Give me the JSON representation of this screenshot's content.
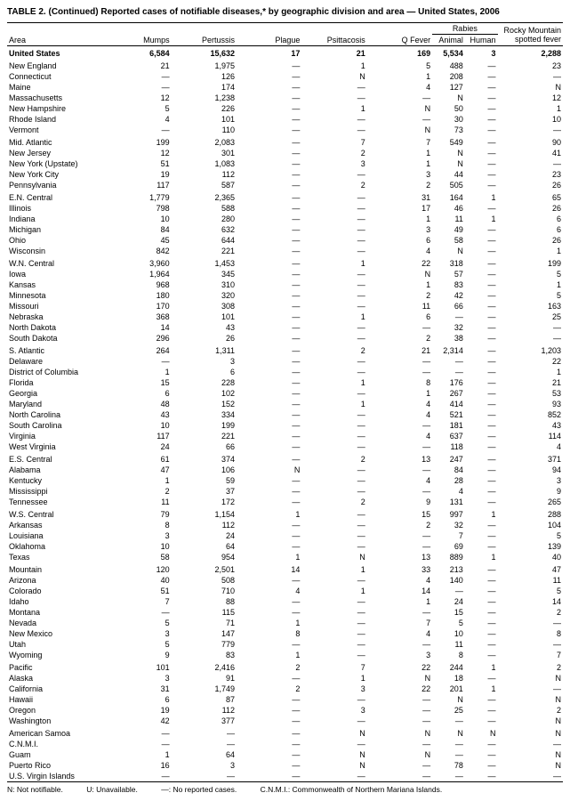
{
  "title": "TABLE 2. (Continued) Reported cases of notifiable diseases,* by geographic division and area — United States, 2006",
  "columns": {
    "area": "Area",
    "mumps": "Mumps",
    "pertussis": "Pertussis",
    "plague": "Plague",
    "psittacosis": "Psittacosis",
    "qfever": "Q Fever",
    "rabies_group": "Rabies",
    "rabies_animal": "Animal",
    "rabies_human": "Human",
    "rmsf": "Rocky Mountain spotted fever"
  },
  "footnote": {
    "n": "N: Not notifiable.",
    "u": "U: Unavailable.",
    "dash": "—: No reported cases.",
    "cnmi": "C.N.M.I.: Commonwealth of Northern Mariana Islands."
  },
  "sections": [
    {
      "bold": true,
      "rows": [
        [
          "United States",
          "6,584",
          "15,632",
          "17",
          "21",
          "169",
          "5,534",
          "3",
          "2,288"
        ]
      ]
    },
    {
      "rows": [
        [
          "New England",
          "21",
          "1,975",
          "—",
          "1",
          "5",
          "488",
          "—",
          "23"
        ],
        [
          "Connecticut",
          "—",
          "126",
          "—",
          "N",
          "1",
          "208",
          "—",
          "—"
        ],
        [
          "Maine",
          "—",
          "174",
          "—",
          "—",
          "4",
          "127",
          "—",
          "N"
        ],
        [
          "Massachusetts",
          "12",
          "1,238",
          "—",
          "—",
          "—",
          "N",
          "—",
          "12"
        ],
        [
          "New Hampshire",
          "5",
          "226",
          "—",
          "1",
          "N",
          "50",
          "—",
          "1"
        ],
        [
          "Rhode Island",
          "4",
          "101",
          "—",
          "—",
          "—",
          "30",
          "—",
          "10"
        ],
        [
          "Vermont",
          "—",
          "110",
          "—",
          "—",
          "N",
          "73",
          "—",
          "—"
        ]
      ]
    },
    {
      "rows": [
        [
          "Mid. Atlantic",
          "199",
          "2,083",
          "—",
          "7",
          "7",
          "549",
          "—",
          "90"
        ],
        [
          "New Jersey",
          "12",
          "301",
          "—",
          "2",
          "1",
          "N",
          "—",
          "41"
        ],
        [
          "New York (Upstate)",
          "51",
          "1,083",
          "—",
          "3",
          "1",
          "N",
          "—",
          "—"
        ],
        [
          "New York City",
          "19",
          "112",
          "—",
          "—",
          "3",
          "44",
          "—",
          "23"
        ],
        [
          "Pennsylvania",
          "117",
          "587",
          "—",
          "2",
          "2",
          "505",
          "—",
          "26"
        ]
      ]
    },
    {
      "rows": [
        [
          "E.N. Central",
          "1,779",
          "2,365",
          "—",
          "—",
          "31",
          "164",
          "1",
          "65"
        ],
        [
          "Illinois",
          "798",
          "588",
          "—",
          "—",
          "17",
          "46",
          "—",
          "26"
        ],
        [
          "Indiana",
          "10",
          "280",
          "—",
          "—",
          "1",
          "11",
          "1",
          "6"
        ],
        [
          "Michigan",
          "84",
          "632",
          "—",
          "—",
          "3",
          "49",
          "—",
          "6"
        ],
        [
          "Ohio",
          "45",
          "644",
          "—",
          "—",
          "6",
          "58",
          "—",
          "26"
        ],
        [
          "Wisconsin",
          "842",
          "221",
          "—",
          "—",
          "4",
          "N",
          "—",
          "1"
        ]
      ]
    },
    {
      "rows": [
        [
          "W.N. Central",
          "3,960",
          "1,453",
          "—",
          "1",
          "22",
          "318",
          "—",
          "199"
        ],
        [
          "Iowa",
          "1,964",
          "345",
          "—",
          "—",
          "N",
          "57",
          "—",
          "5"
        ],
        [
          "Kansas",
          "968",
          "310",
          "—",
          "—",
          "1",
          "83",
          "—",
          "1"
        ],
        [
          "Minnesota",
          "180",
          "320",
          "—",
          "—",
          "2",
          "42",
          "—",
          "5"
        ],
        [
          "Missouri",
          "170",
          "308",
          "—",
          "—",
          "11",
          "66",
          "—",
          "163"
        ],
        [
          "Nebraska",
          "368",
          "101",
          "—",
          "1",
          "6",
          "—",
          "—",
          "25"
        ],
        [
          "North Dakota",
          "14",
          "43",
          "—",
          "—",
          "—",
          "32",
          "—",
          "—"
        ],
        [
          "South Dakota",
          "296",
          "26",
          "—",
          "—",
          "2",
          "38",
          "—",
          "—"
        ]
      ]
    },
    {
      "rows": [
        [
          "S. Atlantic",
          "264",
          "1,311",
          "—",
          "2",
          "21",
          "2,314",
          "—",
          "1,203"
        ],
        [
          "Delaware",
          "—",
          "3",
          "—",
          "—",
          "—",
          "—",
          "—",
          "22"
        ],
        [
          "District of Columbia",
          "1",
          "6",
          "—",
          "—",
          "—",
          "—",
          "—",
          "1"
        ],
        [
          "Florida",
          "15",
          "228",
          "—",
          "1",
          "8",
          "176",
          "—",
          "21"
        ],
        [
          "Georgia",
          "6",
          "102",
          "—",
          "—",
          "1",
          "267",
          "—",
          "53"
        ],
        [
          "Maryland",
          "48",
          "152",
          "—",
          "1",
          "4",
          "414",
          "—",
          "93"
        ],
        [
          "North Carolina",
          "43",
          "334",
          "—",
          "—",
          "4",
          "521",
          "—",
          "852"
        ],
        [
          "South Carolina",
          "10",
          "199",
          "—",
          "—",
          "—",
          "181",
          "—",
          "43"
        ],
        [
          "Virginia",
          "117",
          "221",
          "—",
          "—",
          "4",
          "637",
          "—",
          "114"
        ],
        [
          "West Virginia",
          "24",
          "66",
          "—",
          "—",
          "—",
          "118",
          "—",
          "4"
        ]
      ]
    },
    {
      "rows": [
        [
          "E.S. Central",
          "61",
          "374",
          "—",
          "2",
          "13",
          "247",
          "—",
          "371"
        ],
        [
          "Alabama",
          "47",
          "106",
          "N",
          "—",
          "—",
          "84",
          "—",
          "94"
        ],
        [
          "Kentucky",
          "1",
          "59",
          "—",
          "—",
          "4",
          "28",
          "—",
          "3"
        ],
        [
          "Mississippi",
          "2",
          "37",
          "—",
          "—",
          "—",
          "4",
          "—",
          "9"
        ],
        [
          "Tennessee",
          "11",
          "172",
          "—",
          "2",
          "9",
          "131",
          "—",
          "265"
        ]
      ]
    },
    {
      "rows": [
        [
          "W.S. Central",
          "79",
          "1,154",
          "1",
          "—",
          "15",
          "997",
          "1",
          "288"
        ],
        [
          "Arkansas",
          "8",
          "112",
          "—",
          "—",
          "2",
          "32",
          "—",
          "104"
        ],
        [
          "Louisiana",
          "3",
          "24",
          "—",
          "—",
          "—",
          "7",
          "—",
          "5"
        ],
        [
          "Oklahoma",
          "10",
          "64",
          "—",
          "—",
          "—",
          "69",
          "—",
          "139"
        ],
        [
          "Texas",
          "58",
          "954",
          "1",
          "N",
          "13",
          "889",
          "1",
          "40"
        ]
      ]
    },
    {
      "rows": [
        [
          "Mountain",
          "120",
          "2,501",
          "14",
          "1",
          "33",
          "213",
          "—",
          "47"
        ],
        [
          "Arizona",
          "40",
          "508",
          "—",
          "—",
          "4",
          "140",
          "—",
          "11"
        ],
        [
          "Colorado",
          "51",
          "710",
          "4",
          "1",
          "14",
          "—",
          "—",
          "5"
        ],
        [
          "Idaho",
          "7",
          "88",
          "—",
          "—",
          "1",
          "24",
          "—",
          "14"
        ],
        [
          "Montana",
          "—",
          "115",
          "—",
          "—",
          "—",
          "15",
          "—",
          "2"
        ],
        [
          "Nevada",
          "5",
          "71",
          "1",
          "—",
          "7",
          "5",
          "—",
          "—"
        ],
        [
          "New Mexico",
          "3",
          "147",
          "8",
          "—",
          "4",
          "10",
          "—",
          "8"
        ],
        [
          "Utah",
          "5",
          "779",
          "—",
          "—",
          "—",
          "11",
          "—",
          "—"
        ],
        [
          "Wyoming",
          "9",
          "83",
          "1",
          "—",
          "3",
          "8",
          "—",
          "7"
        ]
      ]
    },
    {
      "rows": [
        [
          "Pacific",
          "101",
          "2,416",
          "2",
          "7",
          "22",
          "244",
          "1",
          "2"
        ],
        [
          "Alaska",
          "3",
          "91",
          "—",
          "1",
          "N",
          "18",
          "—",
          "N"
        ],
        [
          "California",
          "31",
          "1,749",
          "2",
          "3",
          "22",
          "201",
          "1",
          "—"
        ],
        [
          "Hawaii",
          "6",
          "87",
          "—",
          "—",
          "—",
          "N",
          "—",
          "N"
        ],
        [
          "Oregon",
          "19",
          "112",
          "—",
          "3",
          "—",
          "25",
          "—",
          "2"
        ],
        [
          "Washington",
          "42",
          "377",
          "—",
          "—",
          "—",
          "—",
          "—",
          "N"
        ]
      ]
    },
    {
      "rows": [
        [
          "American Samoa",
          "—",
          "—",
          "—",
          "N",
          "N",
          "N",
          "N",
          "N"
        ],
        [
          "C.N.M.I.",
          "—",
          "—",
          "—",
          "—",
          "—",
          "—",
          "—",
          "—"
        ],
        [
          "Guam",
          "1",
          "64",
          "—",
          "N",
          "N",
          "—",
          "—",
          "N"
        ],
        [
          "Puerto Rico",
          "16",
          "3",
          "—",
          "N",
          "—",
          "78",
          "—",
          "N"
        ],
        [
          "U.S. Virgin Islands",
          "—",
          "—",
          "—",
          "—",
          "—",
          "—",
          "—",
          "—"
        ]
      ]
    }
  ]
}
